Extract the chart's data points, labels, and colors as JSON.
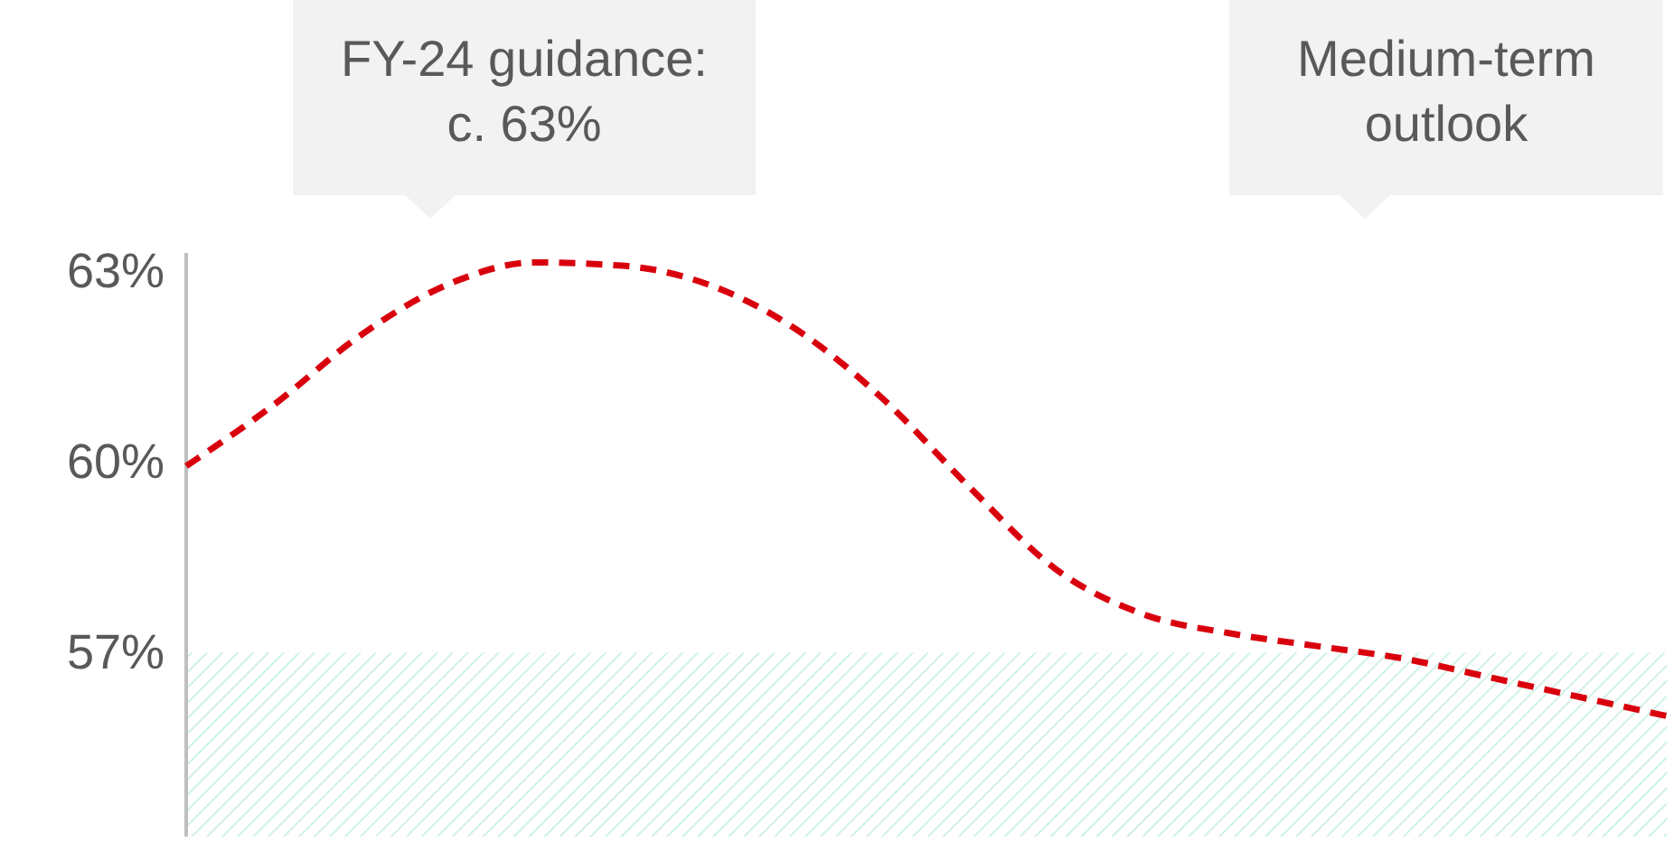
{
  "chart_data": {
    "type": "line",
    "categories": [
      null,
      null,
      null,
      null,
      null,
      null,
      null,
      null,
      null,
      null,
      null,
      null,
      null,
      null,
      null,
      null,
      null,
      null
    ],
    "series": [
      {
        "color": "#d9000d",
        "values": [
          59.94,
          60.9,
          62.0,
          62.8,
          63.15,
          63.1,
          62.8,
          62.1,
          61.0,
          59.6,
          58.3,
          57.6,
          57.3,
          57.1,
          56.9,
          56.6,
          56.3,
          56.0
        ]
      }
    ],
    "ylim": [
      54.1,
      63.3
    ],
    "yticks": [
      {
        "value": 57,
        "label": "57%"
      },
      {
        "value": 60,
        "label": "60%"
      },
      {
        "value": 63,
        "label": "63%"
      }
    ],
    "tick_labels": "y",
    "grid": false,
    "marker": "none",
    "line_style": "dashed",
    "bands": [
      {
        "axis": "y",
        "from": 54.1,
        "to": 57,
        "color": "#bfeedd"
      }
    ],
    "annotations": [
      "FY-24 guidance:\nc. 63%",
      "Medium-term\noutlook"
    ]
  }
}
